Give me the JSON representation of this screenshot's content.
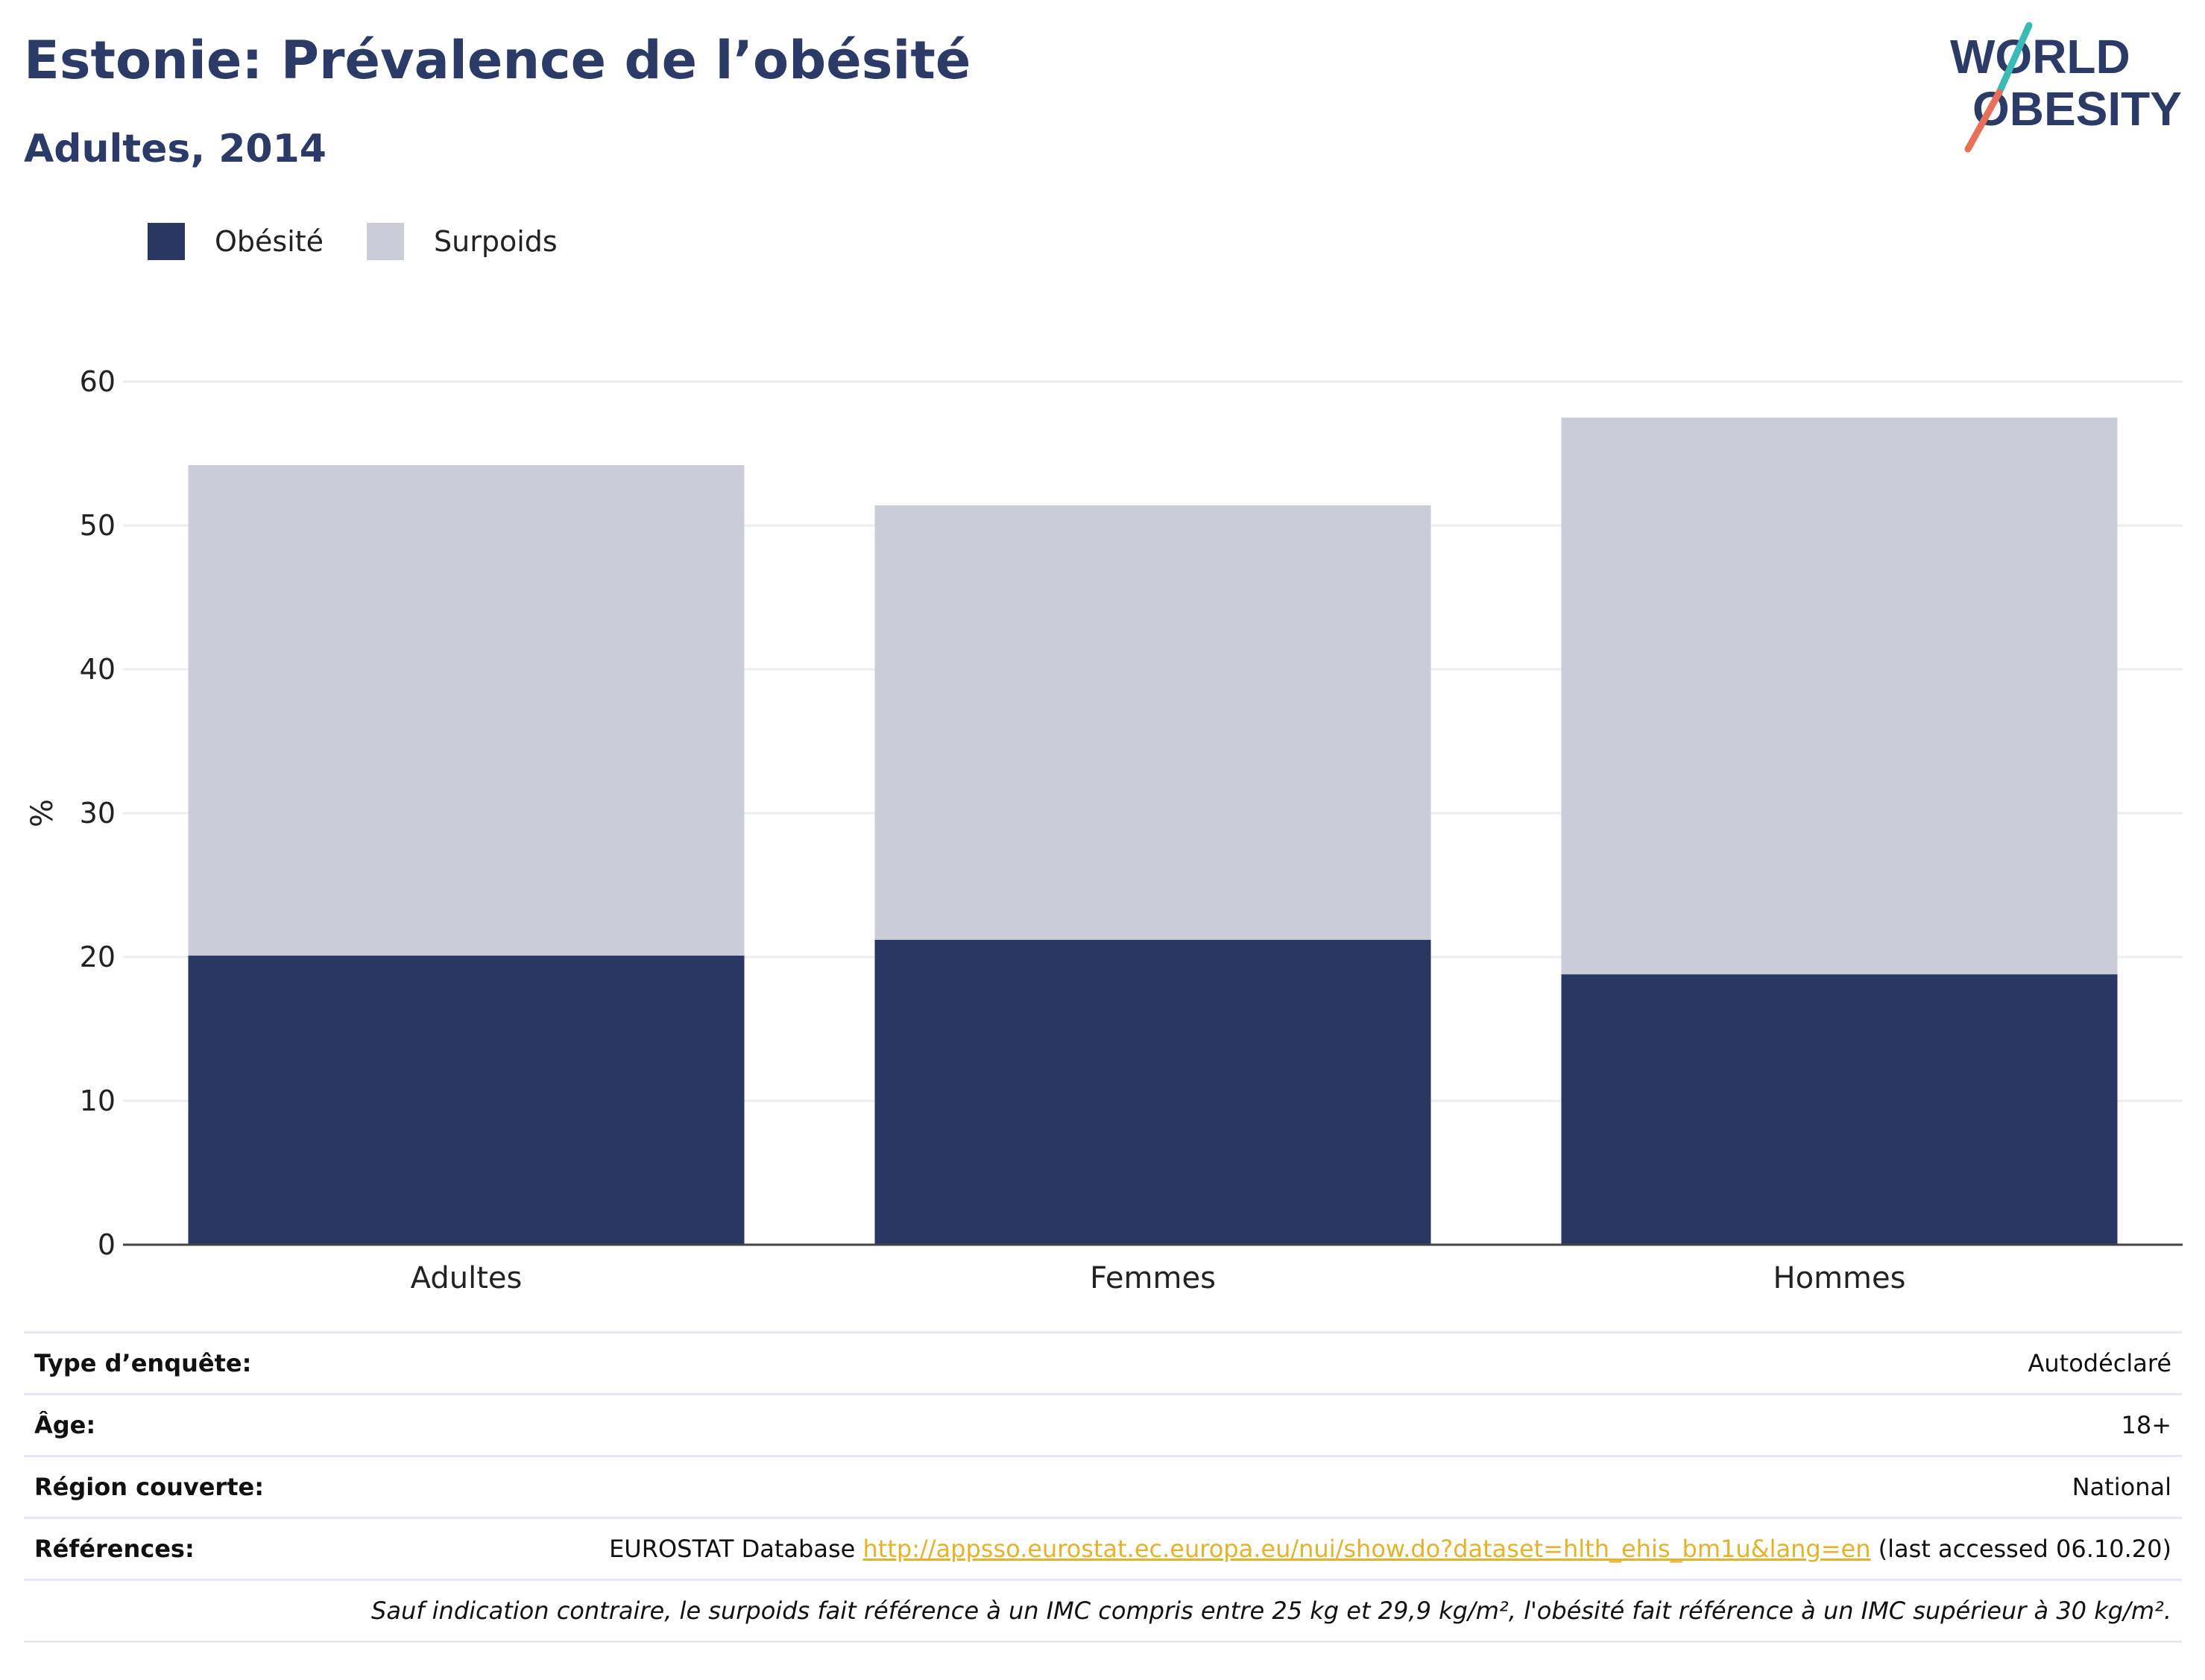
{
  "header": {
    "title": "Estonie: Prévalence de l’obésité",
    "subtitle": "Adultes, 2014"
  },
  "logo": {
    "line1": "WORLD",
    "line2": "OBESITY",
    "colors": {
      "text": "#2b3a67",
      "slash_top": "#3bbbb5",
      "slash_bottom": "#e8705b"
    }
  },
  "legend": [
    {
      "label": "Obésité",
      "color": "#2b3763"
    },
    {
      "label": "Surpoids",
      "color": "#cacdd8"
    }
  ],
  "chart_data": {
    "type": "bar",
    "stacked": true,
    "categories": [
      "Adultes",
      "Femmes",
      "Hommes"
    ],
    "series": [
      {
        "name": "Obésité",
        "values": [
          20.1,
          21.2,
          18.8
        ],
        "color": "#2b3763"
      },
      {
        "name": "Surpoids",
        "values": [
          34.1,
          30.2,
          38.7
        ],
        "color": "#cacdd8"
      }
    ],
    "title": "Estonie: Prévalence de l’obésité",
    "subtitle": "Adultes, 2014",
    "xlabel": "",
    "ylabel": "%",
    "ylim": [
      0,
      60
    ],
    "yticks": [
      0,
      10,
      20,
      30,
      40,
      50,
      60
    ],
    "grid": true,
    "legend_position": "top-left"
  },
  "info": {
    "rows": [
      {
        "key": "Type d’enquête:",
        "value": "Autodéclaré"
      },
      {
        "key": "Âge:",
        "value": "18+"
      },
      {
        "key": "Région couverte:",
        "value": "National"
      }
    ],
    "references": {
      "key": "Références:",
      "prefix": "EUROSTAT Database ",
      "link": "http://appsso.eurostat.ec.europa.eu/nui/show.do?dataset=hlth_ehis_bm1u&lang=en",
      "suffix": " (last accessed 06.10.20)"
    },
    "note": "Sauf indication contraire, le surpoids fait référence à un IMC compris entre 25 kg et 29,9 kg/m², l'obésité fait référence à un IMC supérieur à 30 kg/m²."
  }
}
